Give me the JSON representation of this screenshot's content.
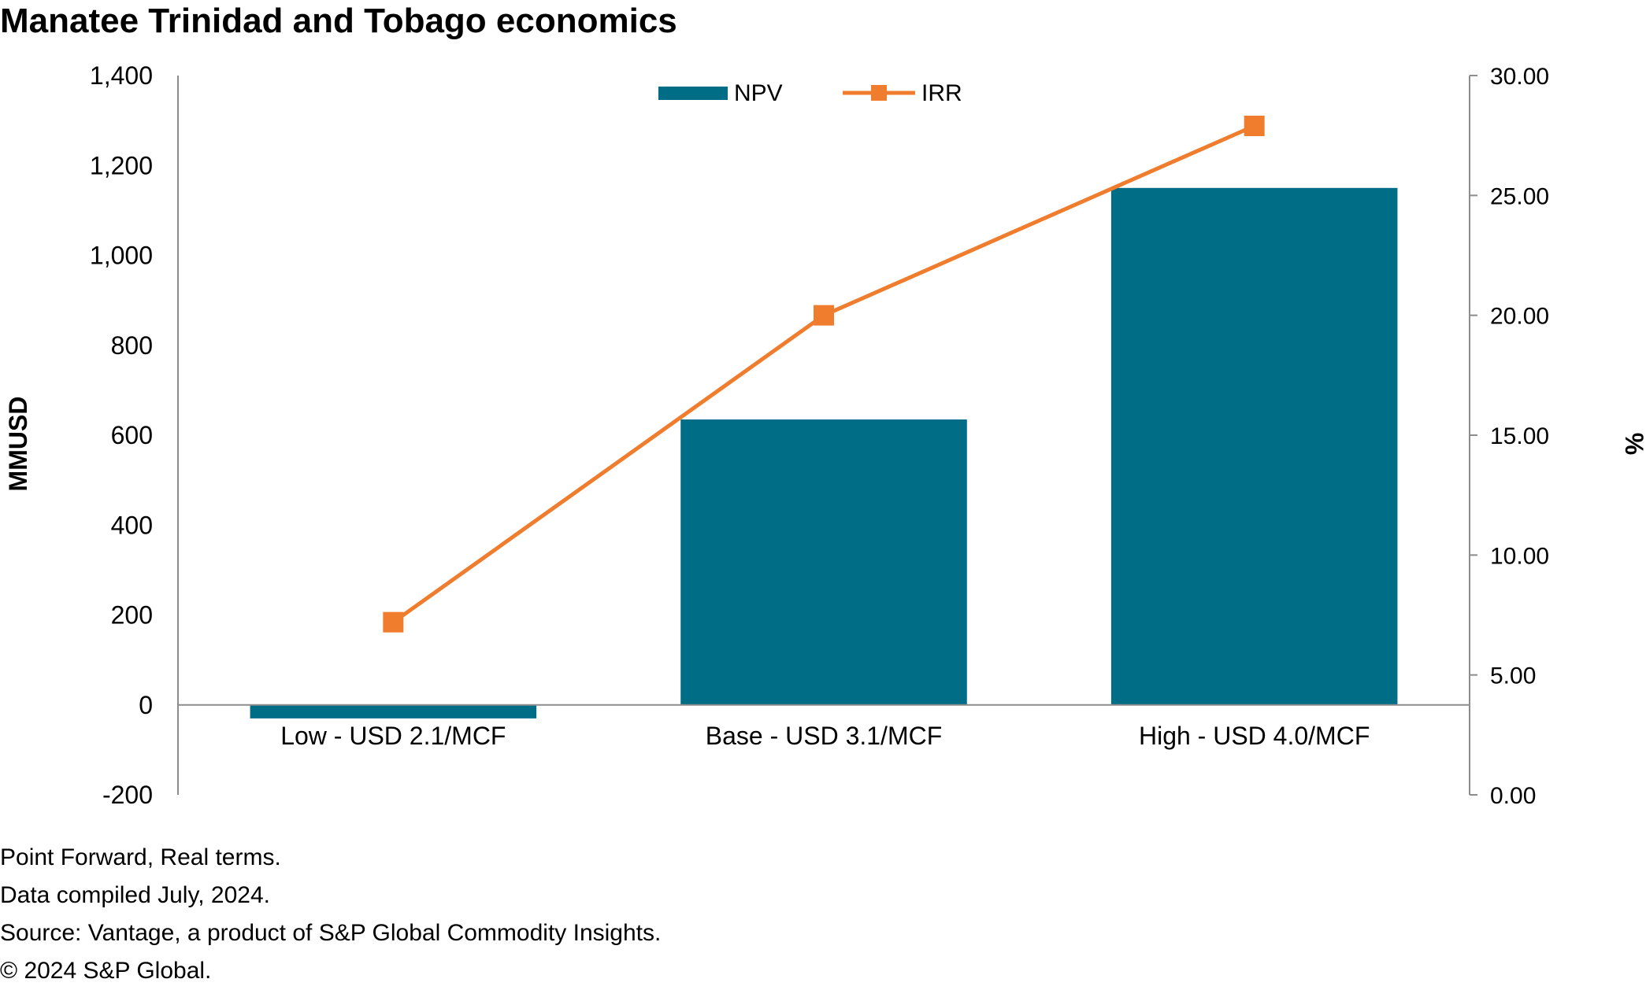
{
  "chart_data": {
    "type": "bar+line",
    "title": "Manatee Trinidad and Tobago economics",
    "categories": [
      "Low - USD 2.1/MCF",
      "Base - USD 3.1/MCF",
      "High - USD 4.0/MCF"
    ],
    "series": [
      {
        "name": "NPV",
        "type": "bar",
        "axis": "left",
        "color": "#006d87",
        "values": [
          -30,
          635,
          1150
        ]
      },
      {
        "name": "IRR",
        "type": "line",
        "axis": "right",
        "color": "#ef7d2d",
        "marker": "square",
        "values": [
          7.2,
          20.0,
          27.9
        ]
      }
    ],
    "y_left": {
      "label": "MMUSD",
      "min": -200,
      "max": 1400,
      "ticks": [
        "-200",
        "0",
        "200",
        "400",
        "600",
        "800",
        "1,000",
        "1,200",
        "1,400"
      ]
    },
    "y_right": {
      "label": "%",
      "min": 0,
      "max": 30,
      "ticks": [
        "0.00",
        "5.00",
        "10.00",
        "15.00",
        "20.00",
        "25.00",
        "30.00"
      ]
    },
    "legend": {
      "position": "top-center",
      "entries": [
        "NPV",
        "IRR"
      ]
    },
    "grid": false
  },
  "footnotes": [
    "Point Forward, Real terms.",
    "Data compiled July, 2024.",
    "Source: Vantage, a product of S&P Global Commodity Insights.",
    "© 2024 S&P Global."
  ]
}
